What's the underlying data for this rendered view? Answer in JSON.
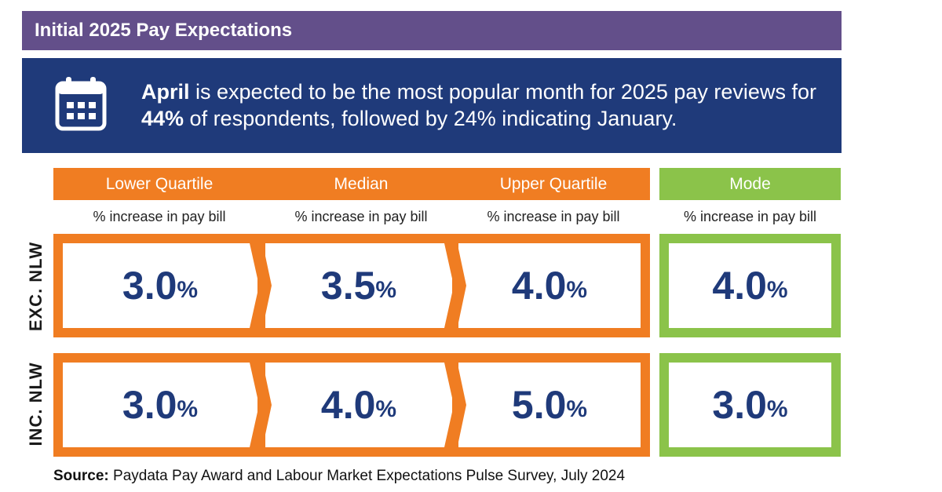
{
  "title": "Initial 2025 Pay Expectations",
  "banner": {
    "icon": "calendar-icon",
    "highlight_month": "April",
    "text_part1": " is expected to be the most popular month for 2025 pay reviews for ",
    "highlight_pct": "44%",
    "text_part2": " of respondents, followed by 24% indicating January."
  },
  "columns": [
    {
      "label": "Lower Quartile",
      "sub": "% increase in pay bill"
    },
    {
      "label": "Median",
      "sub": "% increase in pay bill"
    },
    {
      "label": "Upper Quartile",
      "sub": "% increase in pay bill"
    },
    {
      "label": "Mode",
      "sub": "% increase in pay bill"
    }
  ],
  "rows": [
    {
      "label": "EXC. NLW",
      "values": [
        "3.0",
        "3.5",
        "4.0",
        "4.0"
      ]
    },
    {
      "label": "INC. NLW",
      "values": [
        "3.0",
        "4.0",
        "5.0",
        "3.0"
      ]
    }
  ],
  "pct_symbol": "%",
  "source": {
    "label": "Source:",
    "text": " Paydata Pay Award and Labour Market Expectations Pulse Survey, July 2024"
  },
  "colors": {
    "title_bg": "#634f8a",
    "banner_bg": "#1f3a7a",
    "orange": "#f07d22",
    "green": "#8bc34a",
    "value_text": "#1f3a7a"
  }
}
